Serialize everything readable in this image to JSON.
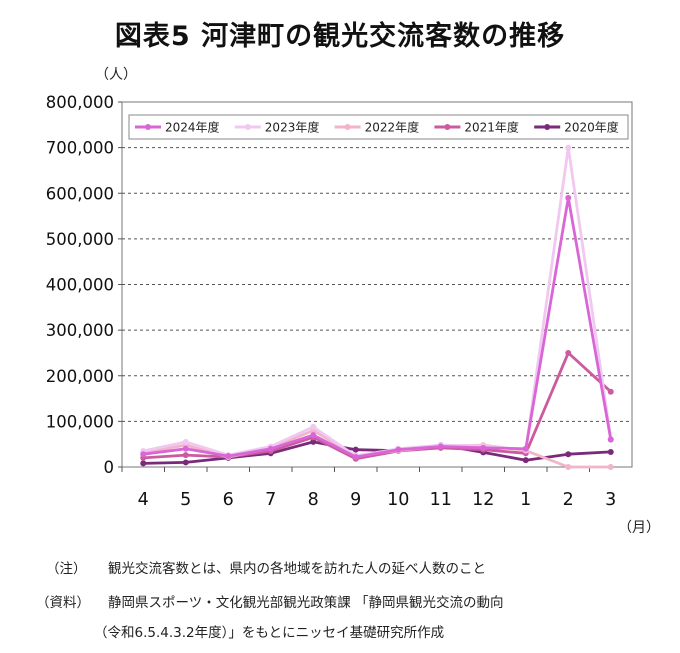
{
  "title": "図表5 河津町の観光交流客数の推移",
  "notes": {
    "note_label": "（注）",
    "note_text": "観光交流客数とは、県内の各地域を訪れた人の延べ人数のこと",
    "source_label": "（資料）",
    "source_line1": "静岡県スポーツ・文化観光部観光政策課 「静岡県観光交流の動向",
    "source_line2": "（令和6.5.4.3.2年度）」をもとにニッセイ基礎研究所作成"
  },
  "chart_data": {
    "type": "line",
    "title": "図表5 河津町の観光交流客数の推移",
    "ylabel": "（人）",
    "xlabel": "（月）",
    "ylim": [
      0,
      800000
    ],
    "yticks": [
      0,
      100000,
      200000,
      300000,
      400000,
      500000,
      600000,
      700000,
      800000
    ],
    "ytick_labels": [
      "0",
      "100,000",
      "200,000",
      "300,000",
      "400,000",
      "500,000",
      "600,000",
      "700,000",
      "800,000"
    ],
    "categories": [
      "4",
      "5",
      "6",
      "7",
      "8",
      "9",
      "10",
      "11",
      "12",
      "1",
      "2",
      "3"
    ],
    "grid": true,
    "legend_position": "top",
    "series": [
      {
        "name": "2024年度",
        "color": "#d966d6",
        "values": [
          28000,
          40000,
          24000,
          40000,
          70000,
          22000,
          38000,
          45000,
          42000,
          40000,
          590000,
          60000
        ]
      },
      {
        "name": "2023年度",
        "color": "#f0c8f0",
        "values": [
          35000,
          55000,
          26000,
          45000,
          88000,
          24000,
          40000,
          48000,
          46000,
          38000,
          700000,
          62000
        ]
      },
      {
        "name": "2022年度",
        "color": "#f2b4c8",
        "values": [
          32000,
          48000,
          22000,
          42000,
          80000,
          25000,
          36000,
          46000,
          48000,
          36000,
          0,
          0
        ]
      },
      {
        "name": "2021年度",
        "color": "#cc5a9e",
        "values": [
          20000,
          26000,
          22000,
          35000,
          65000,
          18000,
          35000,
          42000,
          38000,
          30000,
          250000,
          165000
        ]
      },
      {
        "name": "2020年度",
        "color": "#7a2a7a",
        "values": [
          8000,
          10000,
          20000,
          30000,
          55000,
          38000,
          36000,
          48000,
          32000,
          15000,
          28000,
          33000
        ]
      }
    ]
  }
}
